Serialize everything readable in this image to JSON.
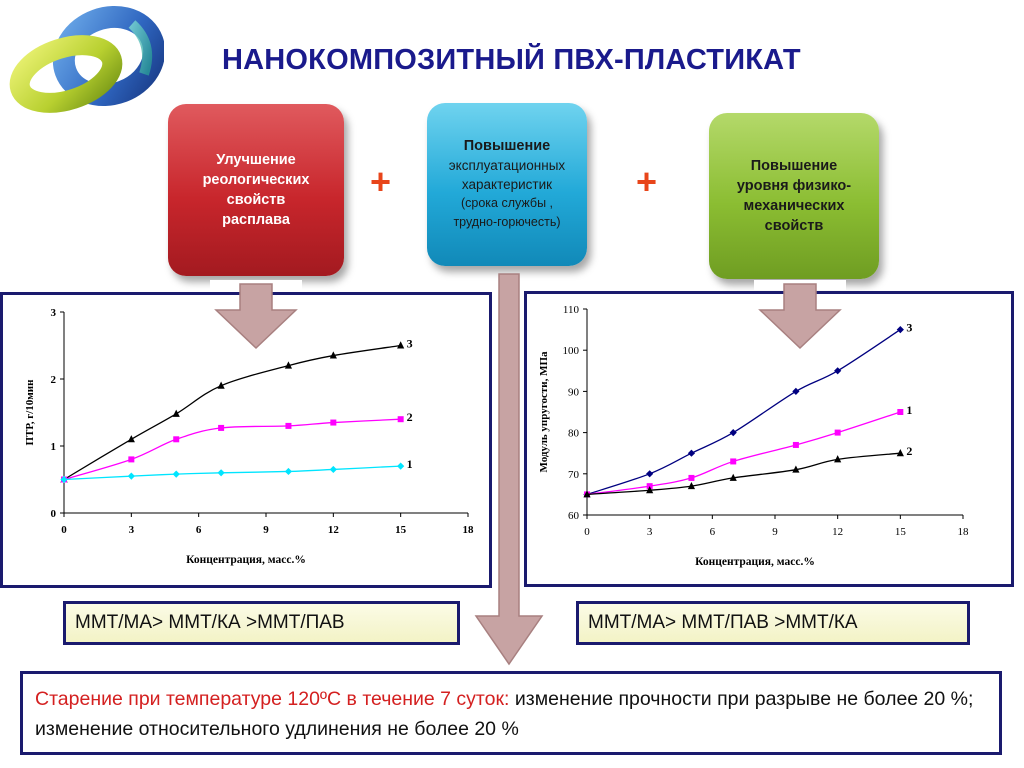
{
  "title": "НАНОКОМПОЗИТНЫЙ ПВХ-ПЛАСТИКАТ",
  "boxes": {
    "red": [
      "Улучшение",
      "реологических",
      "свойств",
      "расплава"
    ],
    "blue": [
      "Повышение",
      "эксплуатационных",
      "характеристик",
      "(срока службы ,",
      "трудно-горючесть)"
    ],
    "green": [
      "Повышение",
      "уровня  физико-",
      "механических",
      "свойств"
    ]
  },
  "plus_sign": "+",
  "ratios": {
    "left": "ММТ/МА> ММТ/КА >ММТ/ПАВ",
    "right": "ММТ/МА> ММТ/ПАВ >ММТ/КА"
  },
  "bottom": {
    "highlight": "Старение при температуре 120ºС в течение 7 суток:",
    "text": " изменение прочности при разрыве не более 20 %; изменение относительного удлинения не более 20 %"
  },
  "colors": {
    "title": "#1a1a8c",
    "red_box": "#c8262c",
    "blue_box": "#22a9d8",
    "green_box": "#8bbd32",
    "plus": "#e8451a",
    "arrow": "#c7a3a3",
    "border": "#1a1a6e"
  },
  "chart_data": [
    {
      "type": "line",
      "xlabel": "Концентрация, масс.%",
      "ylabel": "ПТР, г/10мин",
      "xlim": [
        0,
        18
      ],
      "ylim": [
        0,
        3
      ],
      "xticks": [
        0,
        3,
        6,
        9,
        12,
        15,
        18
      ],
      "yticks": [
        0,
        1,
        2,
        3
      ],
      "x": [
        0,
        3,
        5,
        7,
        10,
        12,
        15
      ],
      "series": [
        {
          "name": "3",
          "color": "#000000",
          "marker": "triangle",
          "values": [
            0.5,
            1.1,
            1.48,
            1.9,
            2.2,
            2.35,
            2.5
          ]
        },
        {
          "name": "2",
          "color": "#ff00ff",
          "marker": "square",
          "values": [
            0.5,
            0.8,
            1.1,
            1.27,
            1.3,
            1.35,
            1.4
          ]
        },
        {
          "name": "1",
          "color": "#00e5ff",
          "marker": "diamond",
          "values": [
            0.5,
            0.55,
            0.58,
            0.6,
            0.62,
            0.65,
            0.7
          ]
        }
      ]
    },
    {
      "type": "line",
      "xlabel": "Концентрация, масс.%",
      "ylabel": "Модуль упругости, МПа",
      "xlim": [
        0,
        18
      ],
      "ylim": [
        60,
        110
      ],
      "xticks": [
        0,
        3,
        6,
        9,
        12,
        15,
        18
      ],
      "yticks": [
        60,
        70,
        80,
        90,
        100,
        110
      ],
      "x": [
        0,
        3,
        5,
        7,
        10,
        12,
        15
      ],
      "series": [
        {
          "name": "3",
          "color": "#000080",
          "marker": "diamond",
          "values": [
            65,
            70,
            75,
            80,
            90,
            95,
            105
          ]
        },
        {
          "name": "1",
          "color": "#ff00ff",
          "marker": "square",
          "values": [
            65,
            67,
            69,
            73,
            77,
            80,
            85
          ]
        },
        {
          "name": "2",
          "color": "#000000",
          "marker": "triangle",
          "values": [
            65,
            66,
            67,
            69,
            71,
            73.5,
            75
          ]
        }
      ]
    }
  ]
}
